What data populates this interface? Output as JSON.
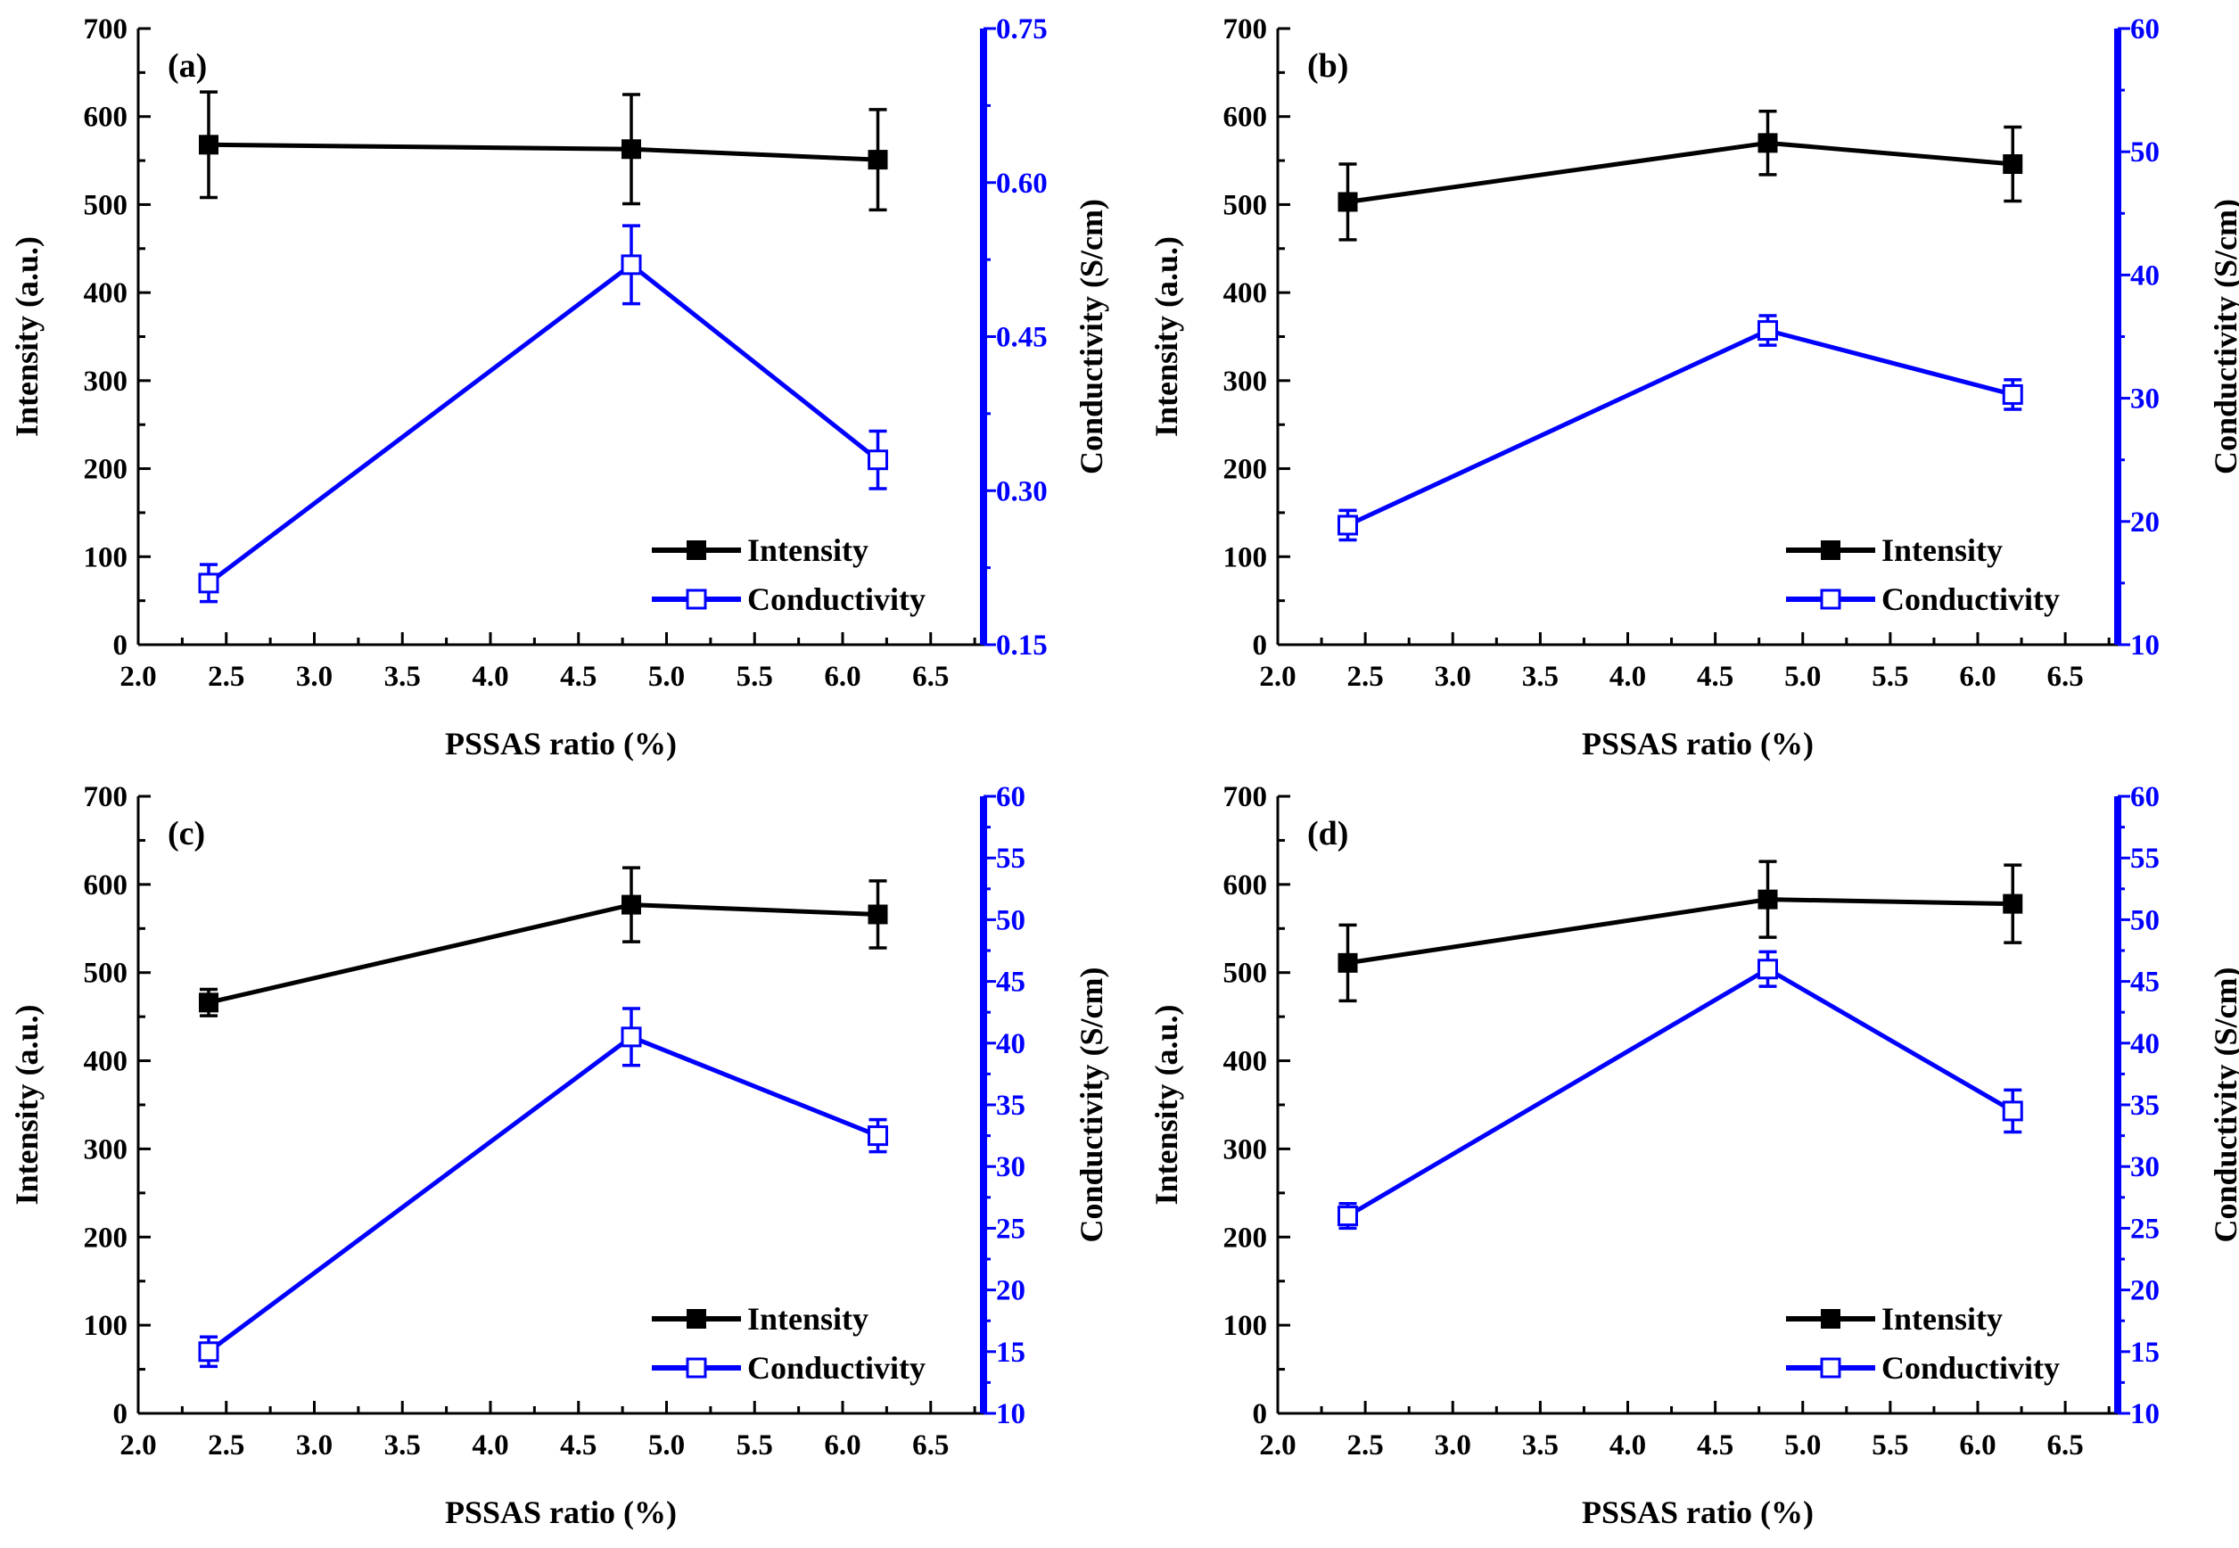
{
  "figure": {
    "left_axis_color": "#000000",
    "right_axis_color": "#0000ff"
  },
  "chart_data": [
    {
      "type": "line",
      "panel_label": "(a)",
      "xlabel": "PSSAS ratio (%)",
      "ylabel": "Intensity (a.u.)",
      "y2label": "Conductivity (S/cm)",
      "xlim": [
        2.0,
        6.8
      ],
      "xticks": [
        "2.0",
        "2.5",
        "3.0",
        "3.5",
        "4.0",
        "4.5",
        "5.0",
        "5.5",
        "6.0",
        "6.5"
      ],
      "ylim": [
        0,
        700
      ],
      "yticks": [
        "0",
        "100",
        "200",
        "300",
        "400",
        "500",
        "600",
        "700"
      ],
      "y2lim": [
        0.15,
        0.75
      ],
      "y2ticks": [
        "0.15",
        "0.30",
        "0.45",
        "0.60",
        "0.75"
      ],
      "y2minor_step": 0.075,
      "legend_position": "bottom-right",
      "series": [
        {
          "name": "Intensity",
          "axis": "left",
          "marker": "filled-square",
          "color": "#000000",
          "x": [
            2.4,
            4.8,
            6.2
          ],
          "y": [
            568,
            563,
            551
          ],
          "err": [
            60,
            62,
            57
          ]
        },
        {
          "name": "Conductivity",
          "axis": "right",
          "marker": "open-square",
          "color": "#0000ff",
          "x": [
            2.4,
            4.8,
            6.2
          ],
          "y": [
            0.21,
            0.52,
            0.33
          ],
          "err": [
            0.018,
            0.038,
            0.028
          ]
        }
      ]
    },
    {
      "type": "line",
      "panel_label": "(b)",
      "xlabel": "PSSAS ratio (%)",
      "ylabel": "Intensity (a.u.)",
      "y2label": "Conductivity (S/cm)",
      "xlim": [
        2.0,
        6.8
      ],
      "xticks": [
        "2.0",
        "2.5",
        "3.0",
        "3.5",
        "4.0",
        "4.5",
        "5.0",
        "5.5",
        "6.0",
        "6.5"
      ],
      "ylim": [
        0,
        700
      ],
      "yticks": [
        "0",
        "100",
        "200",
        "300",
        "400",
        "500",
        "600",
        "700"
      ],
      "y2lim": [
        10,
        60
      ],
      "y2ticks": [
        "10",
        "20",
        "30",
        "40",
        "50",
        "60"
      ],
      "y2minor_step": 5,
      "legend_position": "bottom-right",
      "series": [
        {
          "name": "Intensity",
          "axis": "left",
          "marker": "filled-square",
          "color": "#000000",
          "x": [
            2.4,
            4.8,
            6.2
          ],
          "y": [
            503,
            570,
            546
          ],
          "err": [
            43,
            36,
            42
          ]
        },
        {
          "name": "Conductivity",
          "axis": "right",
          "marker": "open-square",
          "color": "#0000ff",
          "x": [
            2.4,
            4.8,
            6.2
          ],
          "y": [
            19.7,
            35.5,
            30.3
          ],
          "err": [
            1.2,
            1.2,
            1.2
          ]
        }
      ]
    },
    {
      "type": "line",
      "panel_label": "(c)",
      "xlabel": "PSSAS ratio (%)",
      "ylabel": "Intensity (a.u.)",
      "y2label": "Conductivity (S/cm)",
      "xlim": [
        2.0,
        6.8
      ],
      "xticks": [
        "2.0",
        "2.5",
        "3.0",
        "3.5",
        "4.0",
        "4.5",
        "5.0",
        "5.5",
        "6.0",
        "6.5"
      ],
      "ylim": [
        0,
        700
      ],
      "yticks": [
        "0",
        "100",
        "200",
        "300",
        "400",
        "500",
        "600",
        "700"
      ],
      "y2lim": [
        10,
        60
      ],
      "y2ticks": [
        "10",
        "15",
        "20",
        "25",
        "30",
        "35",
        "40",
        "45",
        "50",
        "55",
        "60"
      ],
      "y2minor_step": 2.5,
      "legend_position": "bottom-right",
      "series": [
        {
          "name": "Intensity",
          "axis": "left",
          "marker": "filled-square",
          "color": "#000000",
          "x": [
            2.4,
            4.8,
            6.2
          ],
          "y": [
            466,
            577,
            566
          ],
          "err": [
            15,
            42,
            38
          ]
        },
        {
          "name": "Conductivity",
          "axis": "right",
          "marker": "open-square",
          "color": "#0000ff",
          "x": [
            2.4,
            4.8,
            6.2
          ],
          "y": [
            15.0,
            40.5,
            32.5
          ],
          "err": [
            1.2,
            2.3,
            1.3
          ]
        }
      ]
    },
    {
      "type": "line",
      "panel_label": "(d)",
      "xlabel": "PSSAS ratio (%)",
      "ylabel": "Intensity (a.u.)",
      "y2label": "Conductivity (S/cm)",
      "xlim": [
        2.0,
        6.8
      ],
      "xticks": [
        "2.0",
        "2.5",
        "3.0",
        "3.5",
        "4.0",
        "4.5",
        "5.0",
        "5.5",
        "6.0",
        "6.5"
      ],
      "ylim": [
        0,
        700
      ],
      "yticks": [
        "0",
        "100",
        "200",
        "300",
        "400",
        "500",
        "600",
        "700"
      ],
      "y2lim": [
        10,
        60
      ],
      "y2ticks": [
        "10",
        "15",
        "20",
        "25",
        "30",
        "35",
        "40",
        "45",
        "50",
        "55",
        "60"
      ],
      "y2minor_step": 2.5,
      "legend_position": "bottom-right",
      "series": [
        {
          "name": "Intensity",
          "axis": "left",
          "marker": "filled-square",
          "color": "#000000",
          "x": [
            2.4,
            4.8,
            6.2
          ],
          "y": [
            511,
            583,
            578
          ],
          "err": [
            43,
            43,
            44
          ]
        },
        {
          "name": "Conductivity",
          "axis": "right",
          "marker": "open-square",
          "color": "#0000ff",
          "x": [
            2.4,
            4.8,
            6.2
          ],
          "y": [
            26.0,
            46.0,
            34.5
          ],
          "err": [
            1.0,
            1.4,
            1.7
          ]
        }
      ]
    }
  ]
}
